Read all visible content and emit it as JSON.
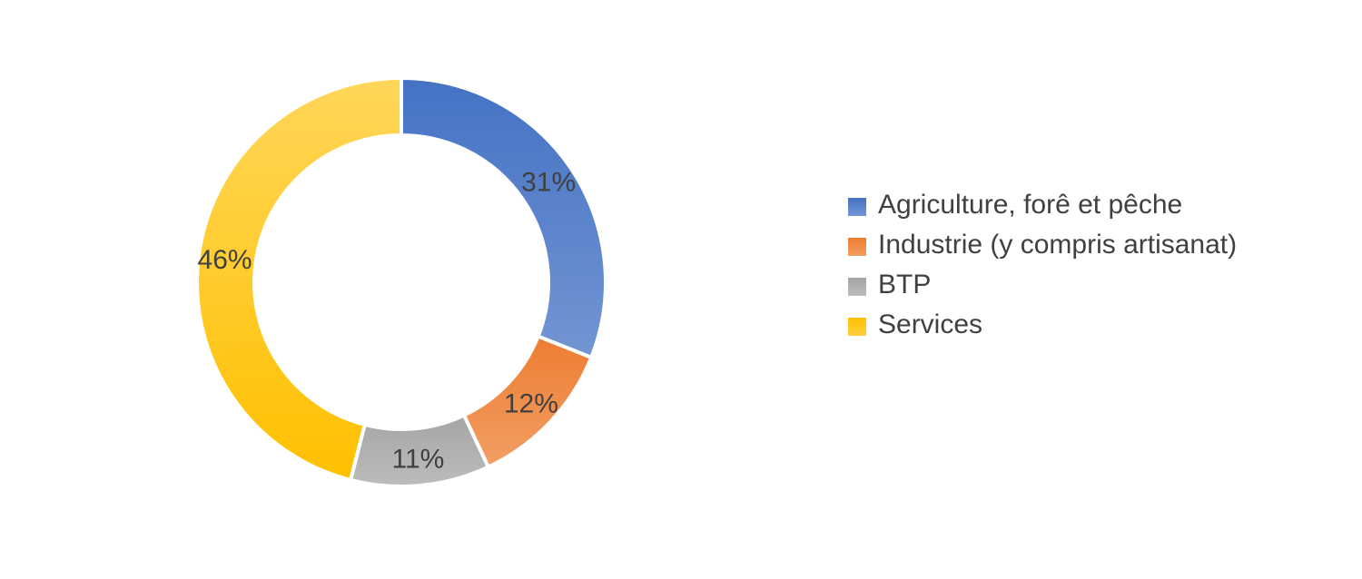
{
  "chart_data": {
    "type": "pie",
    "variant": "donut",
    "categories": [
      "Agriculture, forê et pêche",
      "Industrie (y compris artisanat)",
      "BTP",
      "Services"
    ],
    "values": [
      31,
      12,
      11,
      46
    ],
    "labels": [
      "31%",
      "12%",
      "11%",
      "46%"
    ],
    "colors": [
      "#4472c4",
      "#ed7d31",
      "#a5a5a5",
      "#ffc000"
    ],
    "legend_position": "right"
  }
}
